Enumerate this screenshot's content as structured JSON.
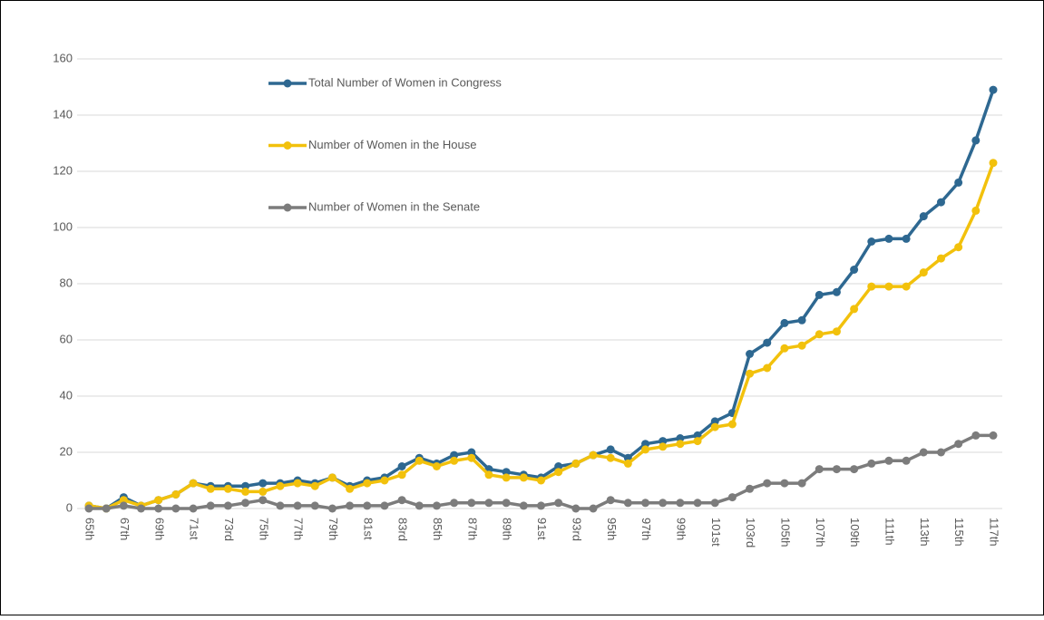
{
  "chart_data": {
    "type": "line",
    "categories": [
      "65th",
      null,
      "67th",
      null,
      "69th",
      null,
      "71st",
      null,
      "73rd",
      null,
      "75th",
      null,
      "77th",
      null,
      "79th",
      null,
      "81st",
      null,
      "83rd",
      null,
      "85th",
      null,
      "87th",
      null,
      "89th",
      null,
      "91st",
      null,
      "93rd",
      null,
      "95th",
      null,
      "97th",
      null,
      "99th",
      null,
      "101st",
      null,
      "103rd",
      null,
      "105th",
      null,
      "107th",
      null,
      "109th",
      null,
      "111th",
      null,
      "113th",
      null,
      "115th",
      null,
      "117th"
    ],
    "series": [
      {
        "name": "Total Number of Women in Congress",
        "color": "#2e6891",
        "values": [
          1,
          0,
          4,
          1,
          3,
          5,
          9,
          8,
          8,
          8,
          9,
          9,
          10,
          9,
          11,
          8,
          10,
          11,
          15,
          18,
          16,
          19,
          20,
          14,
          13,
          12,
          11,
          15,
          16,
          19,
          21,
          18,
          23,
          24,
          25,
          26,
          31,
          34,
          55,
          59,
          66,
          67,
          76,
          77,
          85,
          95,
          96,
          96,
          104,
          109,
          116,
          131,
          149
        ]
      },
      {
        "name": "Number of Women in the House",
        "color": "#f2c10c",
        "values": [
          1,
          0,
          3,
          1,
          3,
          5,
          9,
          7,
          7,
          6,
          6,
          8,
          9,
          8,
          11,
          7,
          9,
          10,
          12,
          17,
          15,
          17,
          18,
          12,
          11,
          11,
          10,
          13,
          16,
          19,
          18,
          16,
          21,
          22,
          23,
          24,
          29,
          30,
          48,
          50,
          57,
          58,
          62,
          63,
          71,
          79,
          79,
          79,
          84,
          89,
          93,
          106,
          123
        ]
      },
      {
        "name": "Number of Women in the Senate",
        "color": "#7c7c7c",
        "values": [
          0,
          0,
          1,
          0,
          0,
          0,
          0,
          1,
          1,
          2,
          3,
          1,
          1,
          1,
          0,
          1,
          1,
          1,
          3,
          1,
          1,
          2,
          2,
          2,
          2,
          1,
          1,
          2,
          0,
          0,
          3,
          2,
          2,
          2,
          2,
          2,
          2,
          4,
          7,
          9,
          9,
          9,
          14,
          14,
          14,
          16,
          17,
          17,
          20,
          20,
          23,
          26,
          26
        ]
      }
    ],
    "ylim": [
      0,
      160
    ],
    "yticks": [
      0,
      20,
      40,
      60,
      80,
      100,
      120,
      140,
      160
    ],
    "grid": true
  }
}
